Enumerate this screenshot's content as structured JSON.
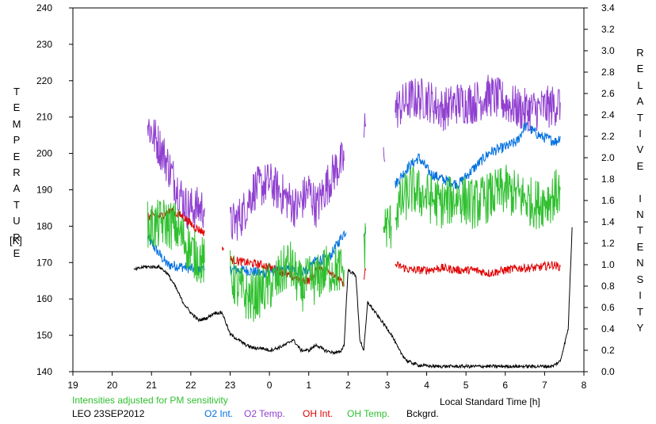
{
  "chart_data": {
    "type": "line",
    "title": "",
    "xlabel": "Local Standard Time [h]",
    "ylabel_left": "TEMPERATURE",
    "ylabel_left_unit": "[K]",
    "ylabel_right": "RELATIVE INTENSITY",
    "xlim": [
      19,
      32
    ],
    "ylim_left": [
      140,
      240
    ],
    "ylim_right": [
      0.0,
      3.4
    ],
    "x_ticks": [
      19,
      20,
      21,
      22,
      23,
      24,
      25,
      26,
      27,
      28,
      29,
      30,
      31,
      32
    ],
    "x_tick_labels": [
      "19",
      "20",
      "21",
      "22",
      "23",
      "0",
      "1",
      "2",
      "3",
      "4",
      "5",
      "6",
      "7",
      "8"
    ],
    "y_left_ticks": [
      140,
      150,
      160,
      170,
      180,
      190,
      200,
      210,
      220,
      230,
      240
    ],
    "y_right_tick_labels": [
      "0.0",
      "0.2",
      "0.4",
      "0.6",
      "0.8",
      "1.0",
      "1.2",
      "1.4",
      "1.6",
      "1.8",
      "2.0",
      "2.2",
      "2.4",
      "2.6",
      "2.8",
      "3.0",
      "3.2",
      "3.4"
    ],
    "note": "Intensities adjusted for PM sensitivity",
    "station": "LEO 23SEP2012",
    "grid": false,
    "series": [
      {
        "name": "O2 Int.",
        "axis": "right",
        "color": "#0070e0",
        "noise": 0.05,
        "segments": [
          [
            [
              20.9,
              1.25
            ],
            [
              21.1,
              1.15
            ],
            [
              21.4,
              1.0
            ],
            [
              21.8,
              0.98
            ],
            [
              22.2,
              0.95
            ],
            [
              22.35,
              0.95
            ]
          ],
          [
            [
              23.0,
              0.95
            ],
            [
              23.4,
              0.95
            ],
            [
              23.8,
              0.92
            ],
            [
              24.3,
              0.95
            ],
            [
              24.7,
              0.95
            ],
            [
              25.0,
              0.95
            ],
            [
              25.2,
              1.05
            ],
            [
              25.5,
              1.05
            ],
            [
              25.9,
              1.3
            ],
            [
              25.95,
              1.3
            ]
          ],
          [
            [
              26.4,
              1.3
            ],
            [
              26.45,
              1.35
            ]
          ],
          [
            [
              27.2,
              1.75
            ],
            [
              27.5,
              1.9
            ],
            [
              27.8,
              2.0
            ],
            [
              28.1,
              1.85
            ],
            [
              28.4,
              1.8
            ],
            [
              28.8,
              1.75
            ],
            [
              29.2,
              1.9
            ],
            [
              29.6,
              2.05
            ],
            [
              30.0,
              2.1
            ],
            [
              30.3,
              2.15
            ],
            [
              30.5,
              2.3
            ],
            [
              30.9,
              2.2
            ],
            [
              31.3,
              2.15
            ],
            [
              31.4,
              2.2
            ]
          ]
        ]
      },
      {
        "name": "O2 Temp.",
        "axis": "left",
        "color": "#9040d0",
        "noise": 6,
        "segments": [
          [
            [
              20.9,
              208
            ],
            [
              21.1,
              204
            ],
            [
              21.3,
              200
            ],
            [
              21.6,
              192
            ],
            [
              21.9,
              185
            ],
            [
              22.1,
              185
            ],
            [
              22.35,
              185
            ]
          ],
          [
            [
              23.0,
              180
            ],
            [
              23.3,
              183
            ],
            [
              23.6,
              190
            ],
            [
              24.0,
              192
            ],
            [
              24.4,
              188
            ],
            [
              24.7,
              185
            ],
            [
              25.0,
              190
            ],
            [
              25.2,
              185
            ],
            [
              25.4,
              190
            ],
            [
              25.7,
              196
            ],
            [
              25.9,
              198
            ]
          ],
          [
            [
              26.4,
              205
            ],
            [
              26.45,
              208
            ]
          ],
          [
            [
              26.9,
              200
            ]
          ],
          [
            [
              27.2,
              212
            ],
            [
              27.6,
              215
            ],
            [
              28.0,
              215
            ],
            [
              28.4,
              212
            ],
            [
              28.8,
              214
            ],
            [
              29.2,
              214
            ],
            [
              29.6,
              216
            ],
            [
              30.0,
              214
            ],
            [
              30.4,
              212
            ],
            [
              30.8,
              212
            ],
            [
              31.2,
              213
            ],
            [
              31.4,
              214
            ]
          ]
        ]
      },
      {
        "name": "OH Int.",
        "axis": "right",
        "color": "#e00000",
        "noise": 0.04,
        "segments": [
          [
            [
              20.9,
              1.45
            ],
            [
              21.2,
              1.45
            ],
            [
              21.5,
              1.5
            ],
            [
              21.8,
              1.45
            ],
            [
              22.1,
              1.35
            ],
            [
              22.35,
              1.3
            ]
          ],
          [
            [
              22.8,
              1.15
            ]
          ],
          [
            [
              23.0,
              1.05
            ],
            [
              23.4,
              1.02
            ],
            [
              23.8,
              1.0
            ],
            [
              24.2,
              0.95
            ],
            [
              24.5,
              0.9
            ],
            [
              24.8,
              0.85
            ],
            [
              25.0,
              0.85
            ],
            [
              25.2,
              0.95
            ]
          ],
          [
            [
              25.2,
              1.0
            ],
            [
              25.5,
              0.95
            ],
            [
              25.7,
              0.9
            ],
            [
              25.9,
              0.8
            ]
          ],
          [
            [
              26.4,
              0.9
            ],
            [
              26.45,
              0.95
            ]
          ],
          [
            [
              27.2,
              1.0
            ],
            [
              27.6,
              0.95
            ],
            [
              28.0,
              0.95
            ],
            [
              28.4,
              0.97
            ],
            [
              28.8,
              0.95
            ],
            [
              29.2,
              0.95
            ],
            [
              29.6,
              0.92
            ],
            [
              30.0,
              0.95
            ],
            [
              30.4,
              0.97
            ],
            [
              30.8,
              0.97
            ],
            [
              31.2,
              1.0
            ],
            [
              31.4,
              0.98
            ]
          ]
        ]
      },
      {
        "name": "OH Temp.",
        "axis": "left",
        "color": "#30c030",
        "noise": 7,
        "segments": [
          [
            [
              20.9,
              180
            ],
            [
              21.1,
              180
            ],
            [
              21.3,
              181
            ],
            [
              21.6,
              180
            ],
            [
              21.9,
              175
            ],
            [
              22.1,
              172
            ],
            [
              22.35,
              170
            ]
          ],
          [
            [
              23.0,
              167
            ],
            [
              23.2,
              163
            ],
            [
              23.5,
              160
            ],
            [
              23.8,
              162
            ],
            [
              24.2,
              165
            ],
            [
              24.5,
              170
            ],
            [
              24.8,
              163
            ],
            [
              25.0,
              165
            ],
            [
              25.2,
              165
            ],
            [
              25.4,
              168
            ],
            [
              25.7,
              168
            ],
            [
              25.9,
              168
            ]
          ],
          [
            [
              26.4,
              172
            ],
            [
              26.45,
              178
            ]
          ],
          [
            [
              26.9,
              180
            ],
            [
              27.1,
              180
            ]
          ],
          [
            [
              27.2,
              184
            ],
            [
              27.6,
              190
            ],
            [
              28.0,
              188
            ],
            [
              28.4,
              186
            ],
            [
              28.8,
              188
            ],
            [
              29.2,
              186
            ],
            [
              29.6,
              188
            ],
            [
              30.0,
              190
            ],
            [
              30.4,
              188
            ],
            [
              30.8,
              186
            ],
            [
              31.2,
              188
            ],
            [
              31.4,
              190
            ]
          ]
        ]
      },
      {
        "name": "Bckgrd.",
        "axis": "right",
        "color": "#000000",
        "noise": 0.015,
        "segments": [
          [
            [
              20.55,
              0.95
            ],
            [
              20.8,
              0.98
            ],
            [
              21.0,
              0.98
            ],
            [
              21.2,
              0.98
            ],
            [
              21.4,
              0.92
            ],
            [
              21.6,
              0.8
            ],
            [
              21.8,
              0.65
            ],
            [
              22.0,
              0.55
            ],
            [
              22.2,
              0.48
            ],
            [
              22.4,
              0.5
            ],
            [
              22.6,
              0.55
            ],
            [
              22.8,
              0.55
            ],
            [
              22.9,
              0.45
            ],
            [
              23.0,
              0.35
            ],
            [
              23.2,
              0.3
            ],
            [
              23.4,
              0.25
            ],
            [
              23.6,
              0.22
            ],
            [
              23.8,
              0.22
            ],
            [
              24.0,
              0.2
            ],
            [
              24.2,
              0.22
            ],
            [
              24.4,
              0.25
            ],
            [
              24.6,
              0.3
            ],
            [
              24.8,
              0.2
            ],
            [
              25.0,
              0.2
            ],
            [
              25.2,
              0.25
            ],
            [
              25.4,
              0.2
            ],
            [
              25.6,
              0.18
            ],
            [
              25.8,
              0.18
            ],
            [
              25.9,
              0.25
            ],
            [
              26.0,
              0.95
            ],
            [
              26.2,
              0.9
            ],
            [
              26.3,
              0.3
            ],
            [
              26.4,
              0.2
            ],
            [
              26.5,
              0.65
            ],
            [
              26.7,
              0.55
            ],
            [
              26.9,
              0.45
            ],
            [
              27.1,
              0.35
            ],
            [
              27.3,
              0.2
            ],
            [
              27.5,
              0.1
            ],
            [
              27.8,
              0.06
            ],
            [
              28.2,
              0.05
            ],
            [
              28.8,
              0.05
            ],
            [
              29.4,
              0.05
            ],
            [
              30.0,
              0.05
            ],
            [
              30.6,
              0.05
            ],
            [
              31.2,
              0.05
            ],
            [
              31.4,
              0.1
            ],
            [
              31.6,
              0.4
            ],
            [
              31.7,
              1.35
            ]
          ]
        ]
      }
    ]
  }
}
